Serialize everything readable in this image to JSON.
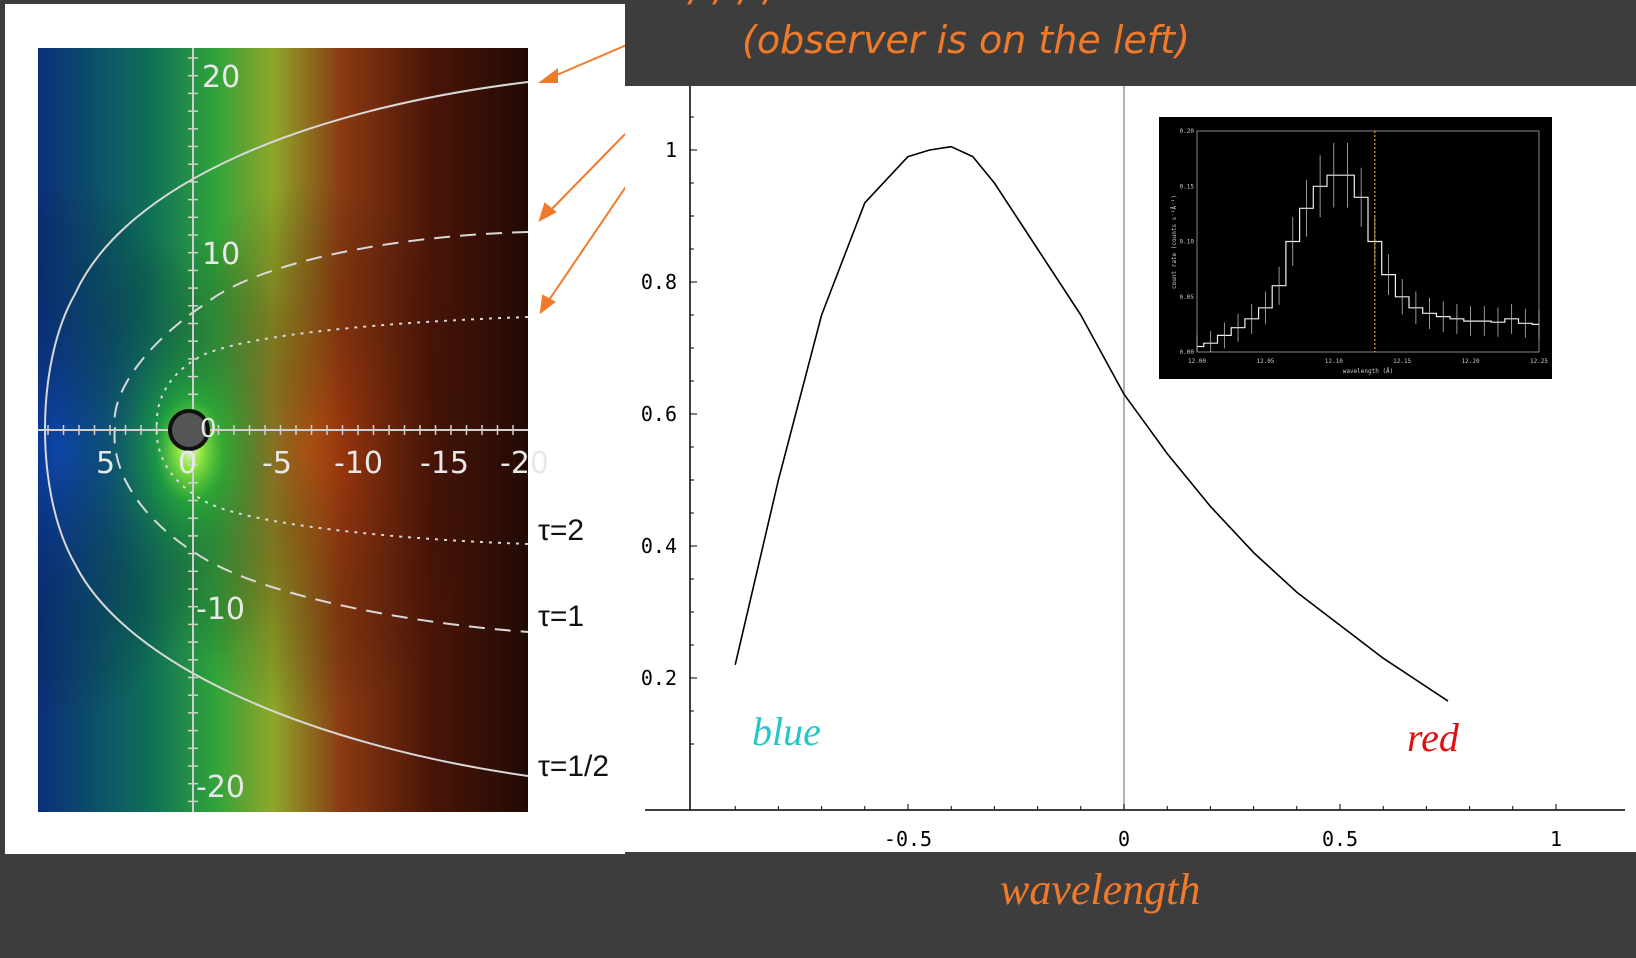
{
  "header": {
    "line1": "/ / / /",
    "line2": "(observer is on the left)"
  },
  "footer": {
    "xlabel": "wavelength"
  },
  "map_panel": {
    "axis_x_ticks": [
      "5",
      "0",
      "-5",
      "-10",
      "-15",
      "-20"
    ],
    "axis_y_ticks": [
      "20",
      "10",
      "-10",
      "-20"
    ],
    "origin_label": "0",
    "tau_labels": [
      "τ=2",
      "τ=1",
      "τ=1/2"
    ]
  },
  "profile_labels": {
    "blue": "blue",
    "red": "red"
  },
  "colors": {
    "background": "#3d3d3d",
    "accent_orange": "#f07a2a",
    "blue_label": "#27c4c8",
    "red_label": "#e01010"
  },
  "chart_data": [
    {
      "type": "line",
      "title": "",
      "xlabel": "wavelength",
      "ylabel": "",
      "xlim": [
        -1,
        1
      ],
      "ylim": [
        0,
        1.1
      ],
      "x_ticks": [
        -0.5,
        0,
        0.5,
        1
      ],
      "x_tick_labels": [
        "-0.5",
        "0",
        "0.5",
        "1"
      ],
      "y_ticks": [
        0.2,
        0.4,
        0.6,
        0.8,
        1
      ],
      "y_tick_labels": [
        "0.2",
        "0.4",
        "0.6",
        "0.8",
        "1"
      ],
      "reference_line_x": 0,
      "series": [
        {
          "x": [
            -0.9,
            -0.8,
            -0.7,
            -0.6,
            -0.5,
            -0.45,
            -0.4,
            -0.35,
            -0.3,
            -0.2,
            -0.1,
            0,
            0.1,
            0.2,
            0.3,
            0.4,
            0.5,
            0.6,
            0.75
          ],
          "y": [
            0.22,
            0.5,
            0.75,
            0.92,
            0.99,
            1.0,
            1.005,
            0.99,
            0.95,
            0.85,
            0.75,
            0.63,
            0.54,
            0.46,
            0.39,
            0.33,
            0.28,
            0.23,
            0.165
          ]
        }
      ]
    },
    {
      "type": "line",
      "title": "",
      "xlabel": "wavelength (Å)",
      "ylabel": "count rate (counts s⁻¹Å⁻¹)",
      "xlim": [
        12.0,
        12.25
      ],
      "ylim": [
        0,
        0.2
      ],
      "x_tick_labels": [
        "12.00",
        "12.05",
        "12.10",
        "12.15",
        "12.20",
        "12.25"
      ],
      "y_tick_labels": [
        "0.00",
        "0.05",
        "0.10",
        "0.15",
        "0.20"
      ],
      "marker_x": 12.13,
      "series": [
        {
          "x": [
            12.0,
            12.01,
            12.02,
            12.03,
            12.04,
            12.05,
            12.06,
            12.07,
            12.08,
            12.09,
            12.1,
            12.11,
            12.12,
            12.13,
            12.14,
            12.15,
            12.16,
            12.17,
            12.18,
            12.19,
            12.2,
            12.21,
            12.22,
            12.23,
            12.24,
            12.25
          ],
          "y": [
            0.005,
            0.008,
            0.015,
            0.022,
            0.03,
            0.04,
            0.06,
            0.1,
            0.13,
            0.15,
            0.16,
            0.16,
            0.14,
            0.1,
            0.07,
            0.05,
            0.04,
            0.035,
            0.032,
            0.03,
            0.028,
            0.028,
            0.027,
            0.03,
            0.026,
            0.025
          ]
        }
      ]
    }
  ]
}
